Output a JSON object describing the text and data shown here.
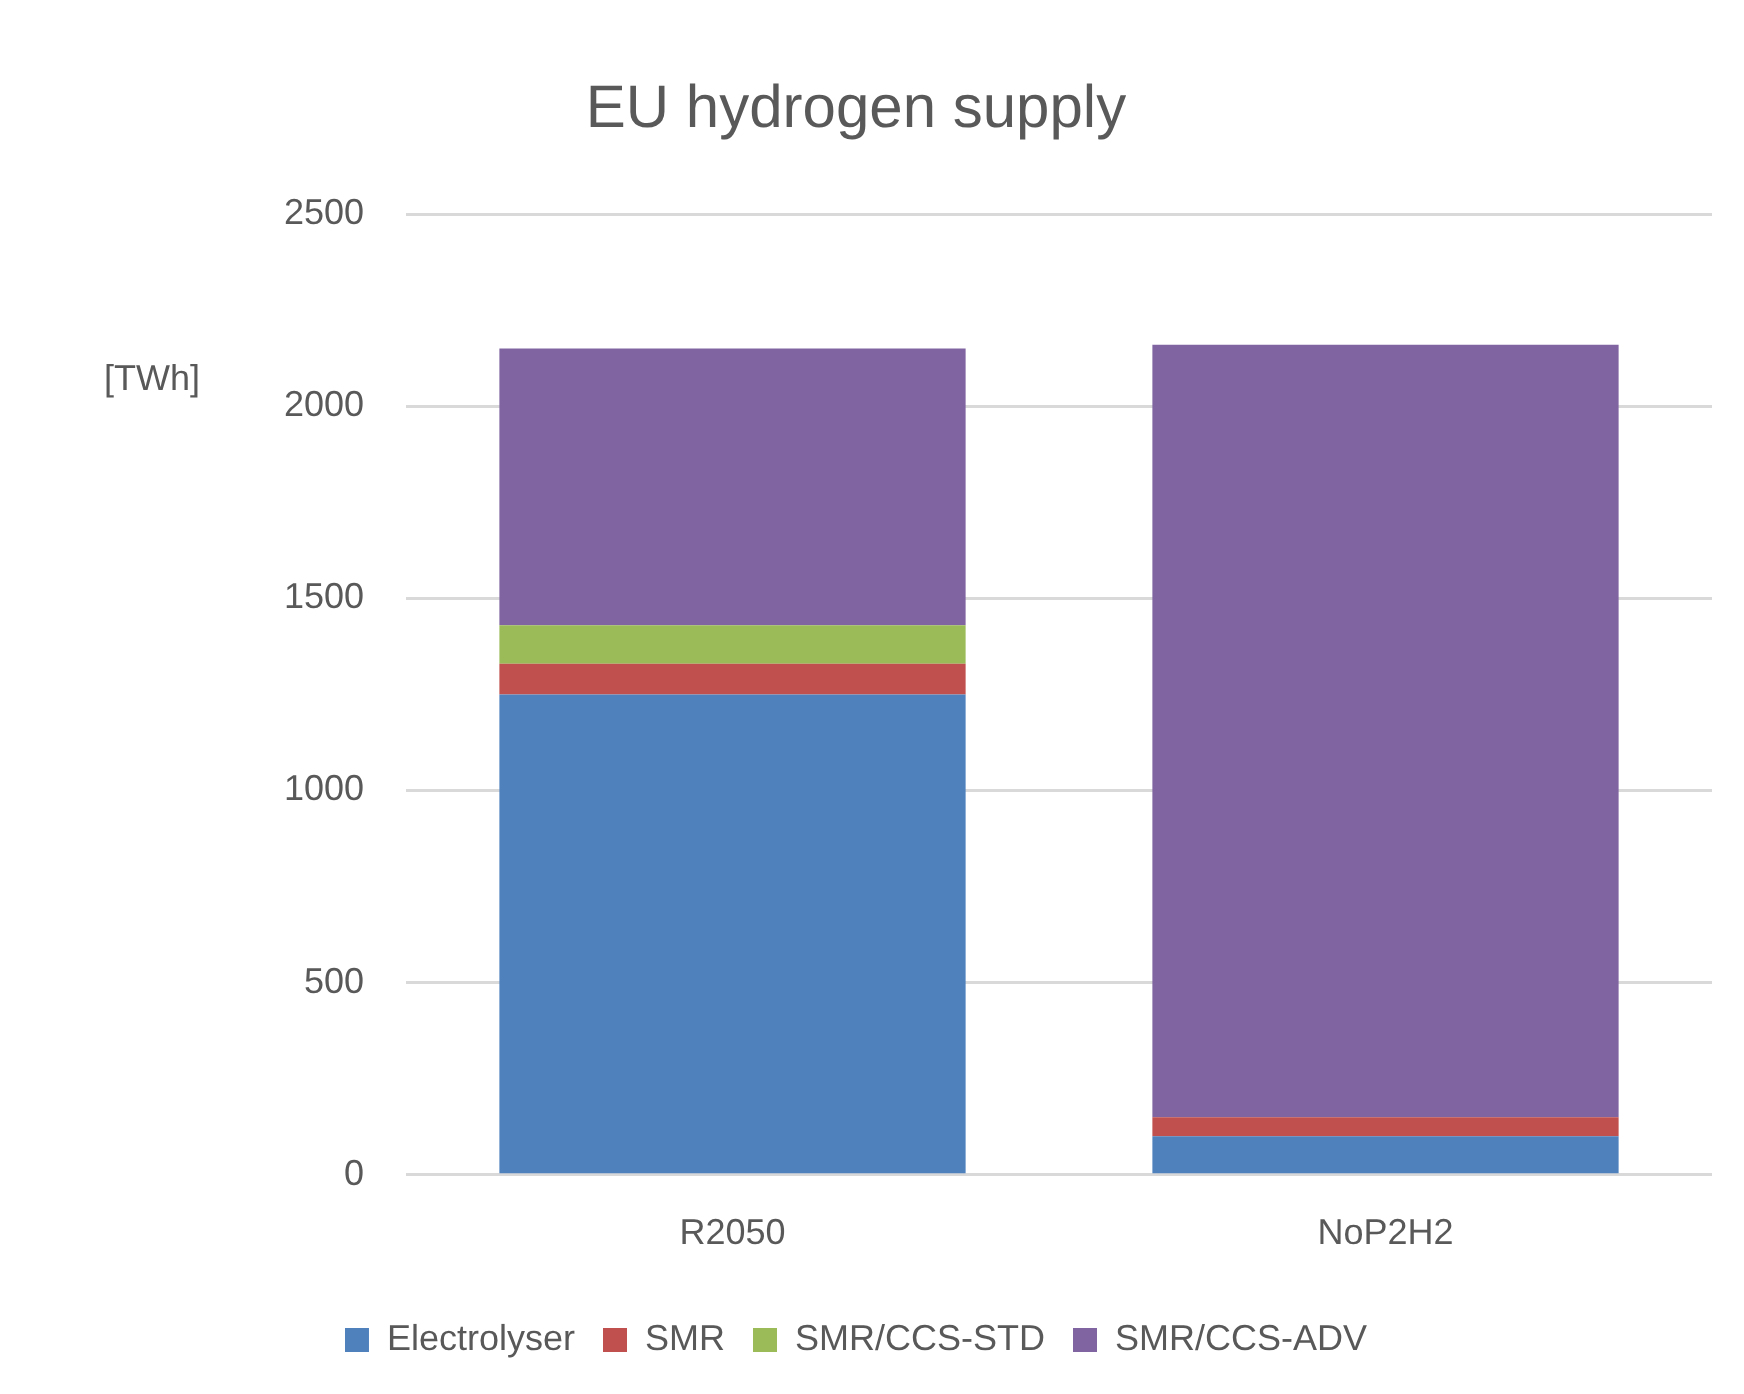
{
  "chart_data": {
    "type": "bar",
    "title": "EU hydrogen supply",
    "ylabel": "[TWh]",
    "categories": [
      "R2050",
      "NoP2H2"
    ],
    "series": [
      {
        "name": "Electrolyser",
        "color": "#4f81bd",
        "values": [
          1250,
          100
        ]
      },
      {
        "name": "SMR",
        "color": "#c0504d",
        "values": [
          80,
          50
        ]
      },
      {
        "name": "SMR/CCS-STD",
        "color": "#9bbb59",
        "values": [
          100,
          0
        ]
      },
      {
        "name": "SMR/CCS-ADV",
        "color": "#8064a2",
        "values": [
          720,
          2010
        ]
      }
    ],
    "stacked": true,
    "ylim": [
      0,
      2500
    ],
    "yticks": [
      0,
      500,
      1000,
      1500,
      2000,
      2500
    ],
    "grid": "y",
    "legend": "bottom"
  }
}
